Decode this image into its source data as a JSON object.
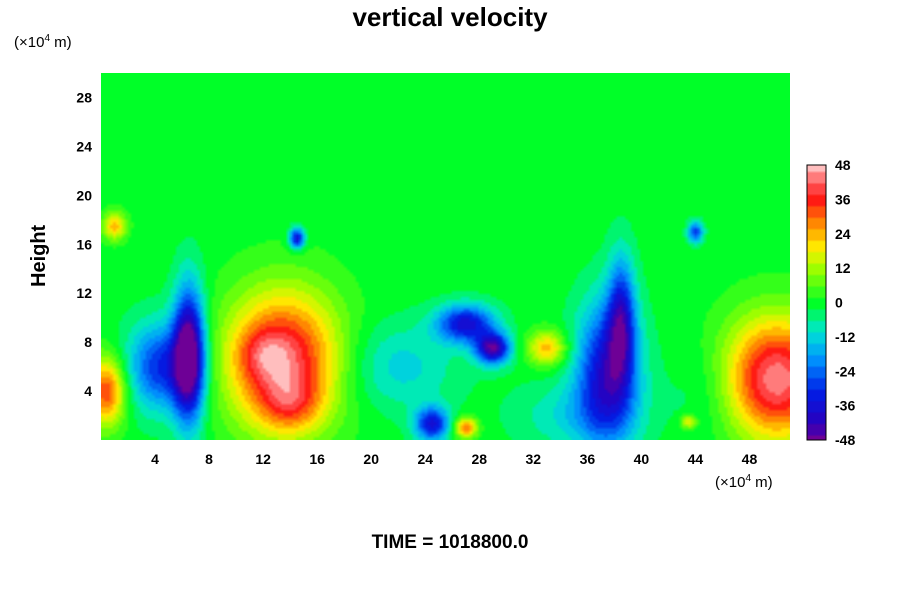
{
  "chart_data": {
    "type": "heatmap",
    "title": "vertical velocity",
    "ylabel": "Height",
    "y_unit_prefix": "(×10",
    "y_unit_exp": "4",
    "y_unit_suffix": " m)",
    "x_unit_prefix": "(×10",
    "x_unit_exp": "4",
    "x_unit_suffix": " m)",
    "xlim": [
      0,
      51
    ],
    "ylim": [
      0,
      30
    ],
    "x_ticks": [
      "4",
      "8",
      "12",
      "16",
      "20",
      "24",
      "28",
      "32",
      "36",
      "40",
      "44",
      "48"
    ],
    "y_ticks": [
      "4",
      "8",
      "12",
      "16",
      "20",
      "24",
      "28"
    ],
    "colorbar": {
      "min": -48,
      "max": 48,
      "ticks": [
        "48",
        "36",
        "24",
        "12",
        "0",
        "-12",
        "-24",
        "-36",
        "-48"
      ]
    },
    "background_value": 0,
    "features": [
      {
        "x": 13.5,
        "y": 6.5,
        "sx": 3.0,
        "sy": 4.0,
        "value": 42
      },
      {
        "x": 14.0,
        "y": 3.0,
        "sx": 1.6,
        "sy": 1.6,
        "value": 14
      },
      {
        "x": 12.0,
        "y": 7.0,
        "sx": 1.3,
        "sy": 1.5,
        "value": 10
      },
      {
        "x": 50.0,
        "y": 5.0,
        "sx": 2.8,
        "sy": 3.5,
        "value": 45
      },
      {
        "x": 0.4,
        "y": 4.0,
        "sx": 1.0,
        "sy": 2.0,
        "value": 34
      },
      {
        "x": 6.5,
        "y": 7.0,
        "sx": 0.8,
        "sy": 3.8,
        "value": -52
      },
      {
        "x": 4.5,
        "y": 6.0,
        "sx": 1.8,
        "sy": 2.5,
        "value": -30
      },
      {
        "x": 27.0,
        "y": 9.5,
        "sx": 1.5,
        "sy": 1.1,
        "value": -36
      },
      {
        "x": 29.0,
        "y": 7.5,
        "sx": 0.9,
        "sy": 0.9,
        "value": -44
      },
      {
        "x": 37.5,
        "y": 5.5,
        "sx": 1.6,
        "sy": 4.0,
        "value": -38
      },
      {
        "x": 38.5,
        "y": 10.0,
        "sx": 0.7,
        "sy": 3.5,
        "value": -30
      },
      {
        "x": 24.5,
        "y": 1.3,
        "sx": 0.9,
        "sy": 1.0,
        "value": -34
      },
      {
        "x": 33.0,
        "y": 7.5,
        "sx": 1.0,
        "sy": 1.0,
        "value": 24
      },
      {
        "x": 27.0,
        "y": 1.0,
        "sx": 0.6,
        "sy": 0.6,
        "value": 30
      },
      {
        "x": 14.5,
        "y": 16.5,
        "sx": 0.4,
        "sy": 0.6,
        "value": -36
      },
      {
        "x": 44.0,
        "y": 17.0,
        "sx": 0.4,
        "sy": 0.6,
        "value": -28
      },
      {
        "x": 1.0,
        "y": 17.5,
        "sx": 0.6,
        "sy": 0.8,
        "value": 24
      },
      {
        "x": 43.5,
        "y": 1.5,
        "sx": 0.4,
        "sy": 0.4,
        "value": 20
      },
      {
        "x": 22.0,
        "y": 6.0,
        "sx": 3.0,
        "sy": 2.5,
        "value": -12
      },
      {
        "x": 35.0,
        "y": 2.0,
        "sx": 3.0,
        "sy": 2.0,
        "value": -10
      },
      {
        "x": 45.0,
        "y": 4.0,
        "sx": 2.0,
        "sy": 3.0,
        "value": -6
      }
    ]
  },
  "time_label": "TIME = 1018800.0"
}
